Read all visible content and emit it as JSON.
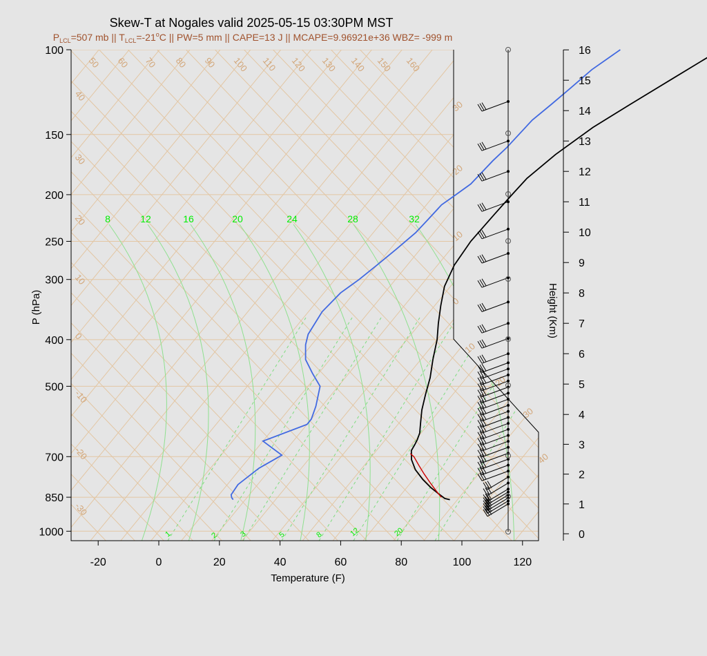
{
  "chart_data": {
    "type": "line",
    "title": "Skew-T at Nogales valid 2025-05-15 03:30PM MST",
    "subtitle": {
      "p_lcl_sym": "P",
      "p_lcl_sub": "LCL",
      "p_lcl_val": "=507 mb || ",
      "t_lcl_sym": "T",
      "t_lcl_sub": "LCL",
      "t_lcl_val": "=-21",
      "deg_sup": "o",
      "rest": "C || PW=5 mm || CAPE=13 J || MCAPE=9.96921e+36 WBZ= -999 m"
    },
    "xlabel": "Temperature (F)",
    "ylabel": "P (hPa)",
    "y2label": "Height (Km)",
    "xlim": [
      -28,
      125
    ],
    "ylim": [
      1030,
      100
    ],
    "x_ticks": [
      -20,
      0,
      20,
      40,
      60,
      80,
      100,
      120
    ],
    "p_ticks": [
      100,
      150,
      200,
      250,
      300,
      400,
      500,
      700,
      850,
      1000
    ],
    "height_ticks": [
      0,
      1,
      2,
      3,
      4,
      5,
      6,
      7,
      8,
      9,
      10,
      11,
      12,
      13,
      14,
      15,
      16
    ],
    "isotherm_labels_top": [
      "50",
      "60",
      "70",
      "80",
      "90",
      "100",
      "110",
      "120",
      "130",
      "140",
      "150",
      "160"
    ],
    "isotherm_labels_left": [
      "40",
      "30",
      "20",
      "10",
      "0",
      "-10",
      "-20",
      "-30"
    ],
    "isotherm_labels_right": [
      "30",
      "20",
      "10",
      "0",
      "10",
      "20",
      "30",
      "40"
    ],
    "theta_e_labels": [
      "8",
      "12",
      "16",
      "20",
      "24",
      "28",
      "32"
    ],
    "mixing_labels": [
      "1",
      "2",
      "3",
      "5",
      "8",
      "12",
      "20"
    ],
    "series": [
      {
        "name": "Temperature",
        "color": "#000000",
        "x": [
          87.5,
          85.5,
          82,
          78,
          73,
          68,
          64,
          61.5,
          61,
          60.5,
          59.5,
          57,
          54,
          51,
          48,
          44,
          40,
          36,
          32,
          28,
          25.5,
          24.5,
          25,
          25.5,
          26,
          29,
          34,
          40,
          47,
          55
        ],
        "y": [
          860,
          855,
          835,
          812,
          780,
          745,
          710,
          680,
          660,
          645,
          625,
          595,
          560,
          520,
          480,
          440,
          400,
          370,
          340,
          310,
          280,
          250,
          220,
          200,
          185,
          165,
          145,
          130,
          115,
          100
        ]
      },
      {
        "name": "Parcel",
        "color": "#cc0000",
        "x": [
          84,
          80,
          76,
          72,
          68,
          64,
          62
        ],
        "y": [
          850,
          820,
          790,
          760,
          730,
          700,
          690
        ]
      },
      {
        "name": "Dew Point",
        "color": "#4169e1",
        "x": [
          16,
          15,
          14,
          13.5,
          16,
          20,
          10,
          20,
          20,
          18,
          14,
          8,
          2,
          -2,
          -4,
          -5.5,
          -4.5,
          -2,
          0,
          2,
          4,
          4.5,
          5,
          7,
          9,
          10,
          11,
          12,
          14,
          16,
          18,
          22
        ],
        "y": [
          860,
          852,
          840,
          800,
          740,
          695,
          650,
          600,
          585,
          550,
          500,
          470,
          440,
          410,
          390,
          350,
          320,
          300,
          280,
          260,
          240,
          225,
          210,
          200,
          190,
          170,
          160,
          140,
          130,
          120,
          110,
          100
        ]
      }
    ],
    "wind_barbs": {
      "color": "#000000",
      "levels_km": [
        1,
        1.1,
        1.2,
        1.3,
        1.4,
        1.5,
        1.7,
        1.9,
        2.1,
        2.3,
        2.5,
        2.7,
        2.9,
        3.1,
        3.3,
        3.5,
        3.7,
        3.9,
        4.1,
        4.3,
        4.5,
        4.7,
        4.9,
        5.1,
        5.3,
        5.5,
        5.7,
        6,
        6.5,
        7,
        7.7,
        8.5,
        9.3,
        10.1,
        11,
        12,
        13,
        14.3
      ]
    }
  }
}
